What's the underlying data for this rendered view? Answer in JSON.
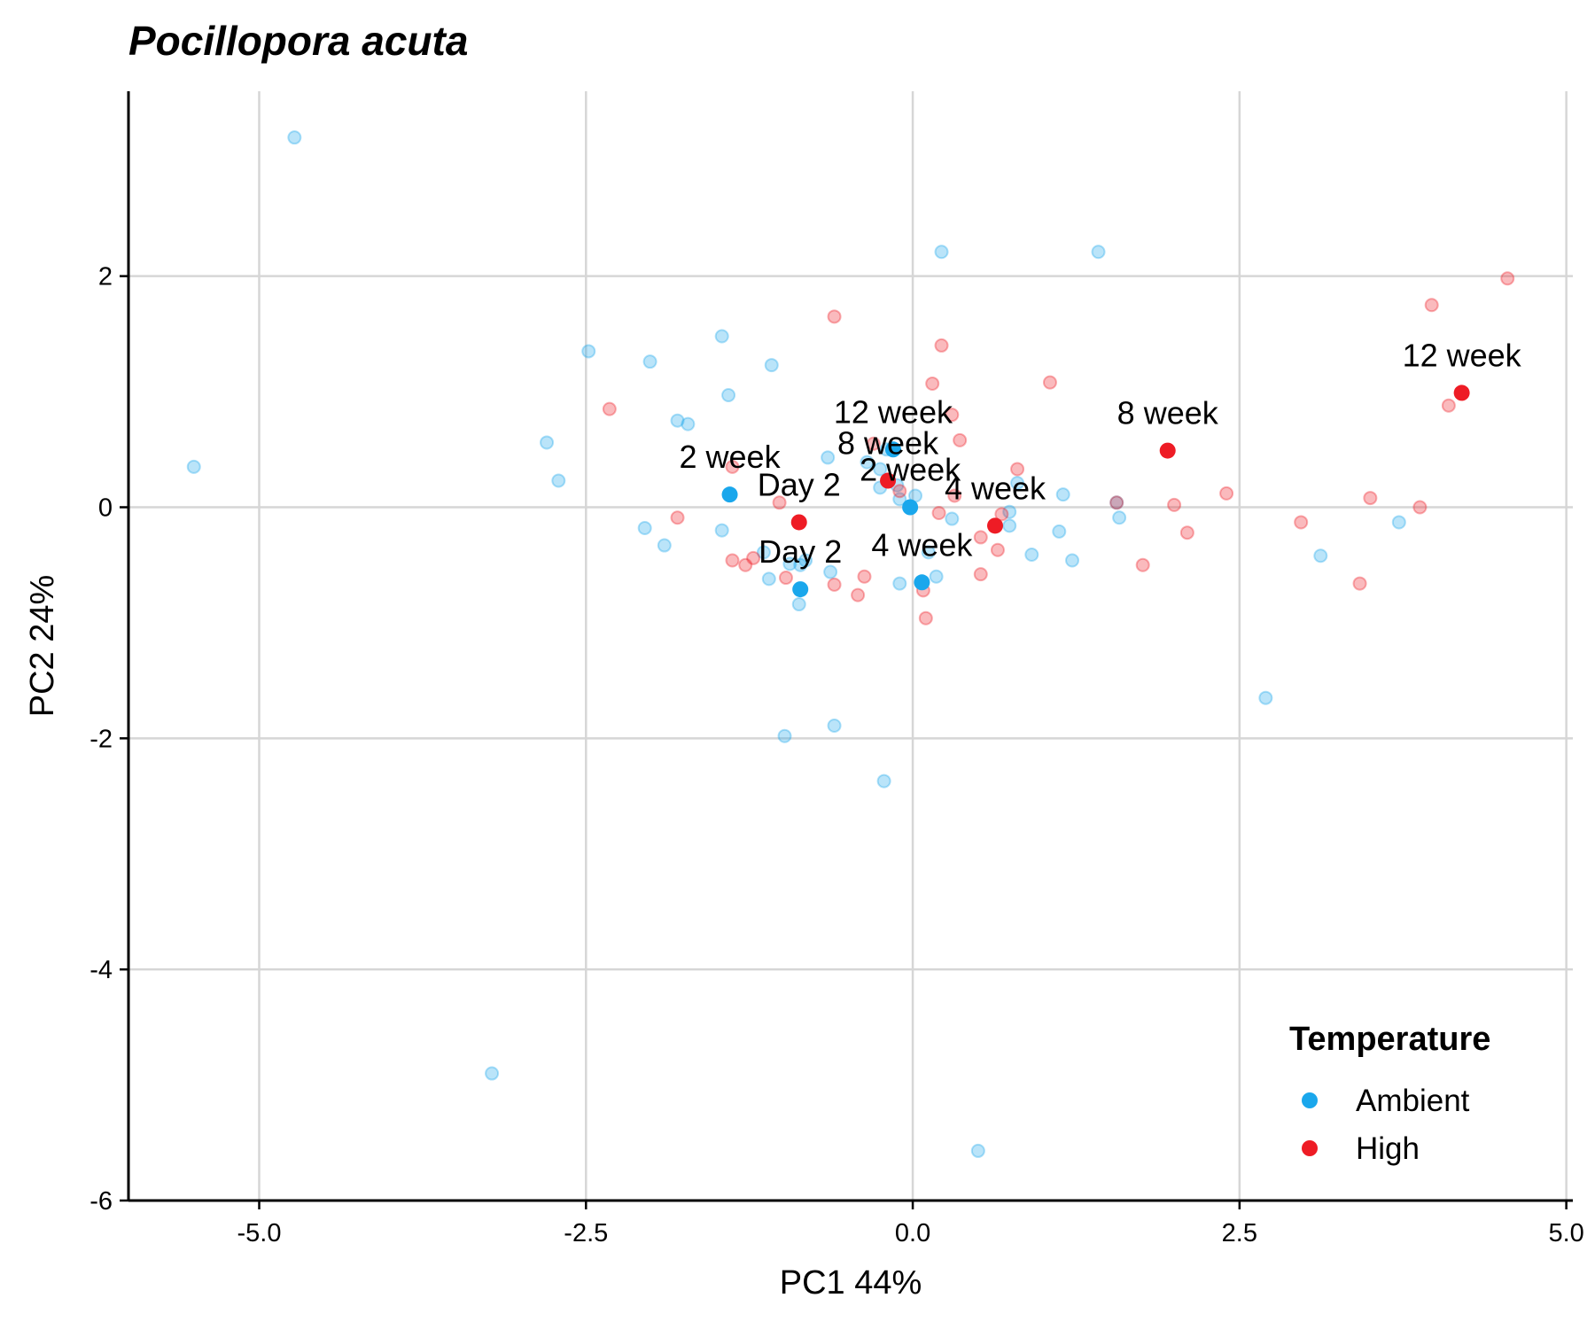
{
  "chart_data": {
    "type": "scatter",
    "title": "Pocillopora acuta",
    "xlabel": "PC1 44%",
    "ylabel": "PC2 24%",
    "xlim": [
      -6.0,
      5.05
    ],
    "ylim": [
      -6.0,
      3.6
    ],
    "x_ticks": [
      "-5.0",
      "-2.5",
      "0.0",
      "2.5",
      "5.0"
    ],
    "x_tick_values": [
      -5.0,
      -2.5,
      0.0,
      2.5,
      5.0
    ],
    "y_ticks": [
      "-6",
      "-4",
      "-2",
      "0",
      "2"
    ],
    "y_tick_values": [
      -6,
      -4,
      -2,
      0,
      2
    ],
    "grid": true,
    "legend": {
      "title": "Temperature",
      "position": "bottom-right",
      "entries": [
        {
          "name": "Ambient",
          "color": "#1aa7ec"
        },
        {
          "name": "High",
          "color": "#ee1c25"
        }
      ]
    },
    "series": [
      {
        "name": "Ambient",
        "color": "#1aa7ec",
        "points": [
          [
            -4.73,
            3.2
          ],
          [
            -5.5,
            0.35
          ],
          [
            -2.48,
            1.35
          ],
          [
            -2.01,
            1.26
          ],
          [
            -2.8,
            0.56
          ],
          [
            -2.71,
            0.23
          ],
          [
            -1.8,
            0.75
          ],
          [
            -1.72,
            0.72
          ],
          [
            -1.46,
            1.48
          ],
          [
            -1.41,
            0.97
          ],
          [
            -1.08,
            1.23
          ],
          [
            -2.05,
            -0.18
          ],
          [
            -1.9,
            -0.33
          ],
          [
            -1.46,
            -0.2
          ],
          [
            -0.86,
            -0.5
          ],
          [
            -0.82,
            -0.46
          ],
          [
            -1.1,
            -0.62
          ],
          [
            -1.14,
            -0.39
          ],
          [
            -0.94,
            -0.49
          ],
          [
            -0.87,
            -0.84
          ],
          [
            -0.63,
            -0.56
          ],
          [
            -0.98,
            -1.98
          ],
          [
            -0.6,
            -1.89
          ],
          [
            -0.22,
            -2.37
          ],
          [
            -3.22,
            -4.9
          ],
          [
            -0.65,
            0.43
          ],
          [
            -0.35,
            0.39
          ],
          [
            -0.25,
            0.33
          ],
          [
            -0.2,
            0.5
          ],
          [
            -0.12,
            0.19
          ],
          [
            -0.1,
            0.07
          ],
          [
            -0.25,
            0.17
          ],
          [
            0.12,
            -0.39
          ],
          [
            -0.1,
            -0.66
          ],
          [
            0.18,
            -0.6
          ],
          [
            0.22,
            2.21
          ],
          [
            1.42,
            2.21
          ],
          [
            0.74,
            -0.04
          ],
          [
            0.8,
            0.21
          ],
          [
            0.74,
            -0.16
          ],
          [
            0.91,
            -0.41
          ],
          [
            1.12,
            -0.21
          ],
          [
            1.15,
            0.11
          ],
          [
            1.22,
            -0.46
          ],
          [
            1.56,
            0.04
          ],
          [
            1.58,
            -0.09
          ],
          [
            2.7,
            -1.65
          ],
          [
            3.12,
            -0.42
          ],
          [
            3.72,
            -0.13
          ],
          [
            0.5,
            -5.57
          ],
          [
            0.02,
            0.1
          ],
          [
            0.3,
            -0.1
          ]
        ]
      },
      {
        "name": "High",
        "color": "#ee1c25",
        "points": [
          [
            -2.32,
            0.85
          ],
          [
            -1.8,
            -0.09
          ],
          [
            -1.38,
            0.35
          ],
          [
            -1.38,
            -0.46
          ],
          [
            -1.28,
            -0.5
          ],
          [
            -1.22,
            -0.44
          ],
          [
            -1.02,
            0.04
          ],
          [
            -0.97,
            -0.61
          ],
          [
            -0.6,
            1.65
          ],
          [
            -0.6,
            -0.67
          ],
          [
            -0.37,
            -0.6
          ],
          [
            -0.42,
            -0.76
          ],
          [
            -0.3,
            0.55
          ],
          [
            -0.1,
            0.14
          ],
          [
            0.08,
            -0.72
          ],
          [
            0.1,
            -0.96
          ],
          [
            0.15,
            1.07
          ],
          [
            0.22,
            1.4
          ],
          [
            0.3,
            0.8
          ],
          [
            0.32,
            0.1
          ],
          [
            0.36,
            0.58
          ],
          [
            0.52,
            -0.26
          ],
          [
            0.52,
            -0.58
          ],
          [
            0.65,
            -0.37
          ],
          [
            0.68,
            -0.06
          ],
          [
            0.8,
            0.33
          ],
          [
            1.05,
            1.08
          ],
          [
            1.56,
            0.04
          ],
          [
            1.76,
            -0.5
          ],
          [
            2.0,
            0.02
          ],
          [
            2.1,
            -0.22
          ],
          [
            2.4,
            0.12
          ],
          [
            2.97,
            -0.13
          ],
          [
            3.5,
            0.08
          ],
          [
            3.42,
            -0.66
          ],
          [
            3.88,
            0.0
          ],
          [
            4.1,
            0.88
          ],
          [
            3.97,
            1.75
          ],
          [
            4.55,
            1.98
          ],
          [
            0.2,
            -0.05
          ]
        ]
      }
    ],
    "centroids": [
      {
        "group": "Ambient",
        "label": "2 week",
        "x": -1.4,
        "y": 0.11
      },
      {
        "group": "Ambient",
        "label": "Day 2",
        "x": -0.86,
        "y": -0.71
      },
      {
        "group": "Ambient",
        "label": "12 week",
        "x": -0.15,
        "y": 0.5
      },
      {
        "group": "Ambient",
        "label": "2 week",
        "x": -0.02,
        "y": 0.0
      },
      {
        "group": "Ambient",
        "label": "4 week",
        "x": 0.07,
        "y": -0.65
      },
      {
        "group": "High",
        "label": "Day 2",
        "x": -0.87,
        "y": -0.13
      },
      {
        "group": "High",
        "label": "8 week",
        "x": -0.19,
        "y": 0.23
      },
      {
        "group": "High",
        "label": "4 week",
        "x": 0.63,
        "y": -0.16
      },
      {
        "group": "High",
        "label": "8 week",
        "x": 1.95,
        "y": 0.49
      },
      {
        "group": "High",
        "label": "12 week",
        "x": 4.2,
        "y": 0.99
      }
    ]
  }
}
